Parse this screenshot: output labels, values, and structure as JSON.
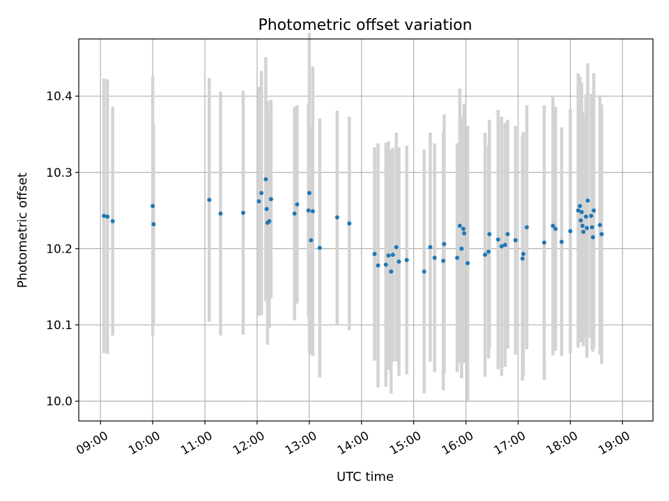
{
  "chart_data": {
    "type": "scatter",
    "title": "Photometric offset variation",
    "xlabel": "UTC time",
    "ylabel": "Photometric offset",
    "xlim": [
      "08:35",
      "19:35"
    ],
    "ylim": [
      9.974,
      10.475
    ],
    "xticks": [
      "09:00",
      "10:00",
      "11:00",
      "12:00",
      "13:00",
      "14:00",
      "15:00",
      "16:00",
      "17:00",
      "18:00",
      "19:00"
    ],
    "yticks": [
      10.0,
      10.1,
      10.2,
      10.3,
      10.4
    ],
    "ytick_labels": [
      "10.0",
      "10.1",
      "10.2",
      "10.3",
      "10.4"
    ],
    "grid": true,
    "marker_color": "#1f77b4",
    "errorbar_color": "#d3d3d3",
    "series": [
      {
        "x": [
          "09:04",
          "09:08",
          "09:14",
          "10:00",
          "10:01",
          "11:05",
          "11:18",
          "11:44",
          "12:02",
          "12:05",
          "12:10",
          "12:11",
          "12:12",
          "12:14",
          "12:16",
          "12:43",
          "12:46",
          "12:59",
          "13:00",
          "13:02",
          "13:04",
          "13:12",
          "13:32",
          "13:46",
          "14:15",
          "14:19",
          "14:28",
          "14:31",
          "14:34",
          "14:36",
          "14:40",
          "14:43",
          "14:52",
          "15:12",
          "15:19",
          "15:24",
          "15:34",
          "15:35",
          "15:50",
          "15:53",
          "15:55",
          "15:57",
          "15:58",
          "16:02",
          "16:22",
          "16:26",
          "16:27",
          "16:37",
          "16:41",
          "16:45",
          "16:48",
          "16:57",
          "17:05",
          "17:06",
          "17:10",
          "17:30",
          "17:40",
          "17:43",
          "17:50",
          "18:00",
          "18:09",
          "18:11",
          "18:12",
          "18:13",
          "18:14",
          "18:15",
          "18:18",
          "18:19",
          "18:20",
          "18:24",
          "18:25",
          "18:26",
          "18:27",
          "18:34",
          "18:36"
        ],
        "y": [
          10.243,
          10.242,
          10.236,
          10.256,
          10.232,
          10.264,
          10.246,
          10.247,
          10.262,
          10.273,
          10.291,
          10.252,
          10.234,
          10.236,
          10.265,
          10.246,
          10.258,
          10.25,
          10.273,
          10.211,
          10.249,
          10.201,
          10.241,
          10.233,
          10.193,
          10.178,
          10.179,
          10.191,
          10.17,
          10.192,
          10.202,
          10.183,
          10.185,
          10.17,
          10.202,
          10.188,
          10.184,
          10.206,
          10.188,
          10.23,
          10.2,
          10.226,
          10.22,
          10.181,
          10.192,
          10.196,
          10.219,
          10.212,
          10.203,
          10.205,
          10.219,
          10.211,
          10.187,
          10.193,
          10.228,
          10.208,
          10.23,
          10.226,
          10.209,
          10.223,
          10.25,
          10.256,
          10.237,
          10.248,
          10.23,
          10.222,
          10.242,
          10.227,
          10.263,
          10.243,
          10.228,
          10.215,
          10.25,
          10.231,
          10.219
        ],
        "yerr": [
          0.18,
          0.18,
          0.15,
          0.17,
          0.13,
          0.16,
          0.16,
          0.16,
          0.15,
          0.16,
          0.16,
          0.12,
          0.16,
          0.14,
          0.13,
          0.14,
          0.13,
          0.14,
          0.21,
          0.15,
          0.19,
          0.17,
          0.14,
          0.14,
          0.14,
          0.16,
          0.16,
          0.15,
          0.16,
          0.14,
          0.15,
          0.15,
          0.15,
          0.16,
          0.15,
          0.15,
          0.17,
          0.17,
          0.15,
          0.18,
          0.17,
          0.15,
          0.17,
          0.18,
          0.16,
          0.14,
          0.15,
          0.17,
          0.17,
          0.16,
          0.15,
          0.15,
          0.16,
          0.16,
          0.16,
          0.18,
          0.17,
          0.16,
          0.15,
          0.16,
          0.18,
          0.17,
          0.16,
          0.17,
          0.15,
          0.15,
          0.16,
          0.17,
          0.18,
          0.16,
          0.16,
          0.15,
          0.18,
          0.17,
          0.17
        ]
      }
    ]
  }
}
